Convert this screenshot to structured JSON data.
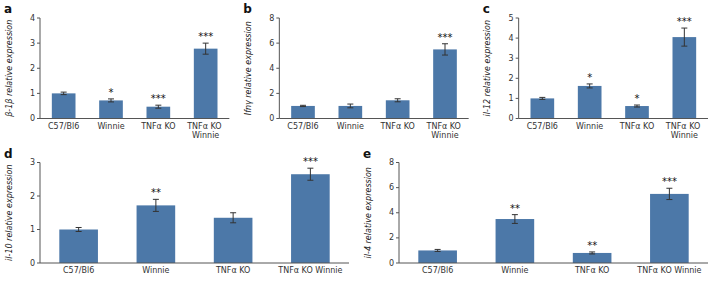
{
  "chart_data": [
    {
      "type": "bar",
      "title": "a",
      "ylabel": "β-1β relative expression",
      "categories": [
        "C57/Bl6",
        "Winnie",
        "TNFα KO",
        "TNFα KO Winnie"
      ],
      "values": [
        1.0,
        0.72,
        0.47,
        2.78
      ],
      "errors": [
        0.05,
        0.06,
        0.06,
        0.22
      ],
      "annotations": [
        null,
        "*",
        "***",
        "***"
      ],
      "ylim": [
        0,
        4
      ],
      "yticks": [
        0,
        1,
        2,
        3,
        4
      ]
    },
    {
      "type": "bar",
      "title": "b",
      "ylabel": "Ifnγ relative expression",
      "categories": [
        "C57/Bl6",
        "Winnie",
        "TNFα KO",
        "TNFα KO Winnie"
      ],
      "values": [
        1.0,
        1.0,
        1.45,
        5.5
      ],
      "errors": [
        0.05,
        0.15,
        0.12,
        0.45
      ],
      "annotations": [
        null,
        null,
        null,
        "***"
      ],
      "ylim": [
        0,
        8
      ],
      "yticks": [
        0,
        2,
        4,
        6,
        8
      ]
    },
    {
      "type": "bar",
      "title": "c",
      "ylabel": "il-12 relative expression",
      "categories": [
        "C57/Bl6",
        "Winnie",
        "TNFα KO",
        "TNFα KO Winnie"
      ],
      "values": [
        1.0,
        1.62,
        0.62,
        4.05
      ],
      "errors": [
        0.05,
        0.1,
        0.05,
        0.45
      ],
      "annotations": [
        null,
        "*",
        "*",
        "***"
      ],
      "ylim": [
        0,
        5
      ],
      "yticks": [
        0,
        1,
        2,
        3,
        4,
        5
      ]
    },
    {
      "type": "bar",
      "title": "d",
      "ylabel": "il-10 relative expression",
      "categories": [
        "C57/Bl6",
        "Winnie",
        "TNFα KO",
        "TNFα KO Winnie"
      ],
      "values": [
        1.0,
        1.72,
        1.35,
        2.65
      ],
      "errors": [
        0.06,
        0.18,
        0.15,
        0.18
      ],
      "annotations": [
        null,
        "**",
        null,
        "***"
      ],
      "ylim": [
        0,
        3
      ],
      "yticks": [
        0,
        1,
        2,
        3
      ]
    },
    {
      "type": "bar",
      "title": "e",
      "ylabel": "il-4 relative expression",
      "categories": [
        "C57/Bl6",
        "Winnie",
        "TNFα KO",
        "TNFα KO Winnie"
      ],
      "values": [
        1.0,
        3.5,
        0.8,
        5.5
      ],
      "errors": [
        0.08,
        0.35,
        0.08,
        0.45
      ],
      "annotations": [
        null,
        "**",
        "**",
        "***"
      ],
      "ylim": [
        0,
        8
      ],
      "yticks": [
        0,
        2,
        4,
        6,
        8
      ]
    }
  ]
}
